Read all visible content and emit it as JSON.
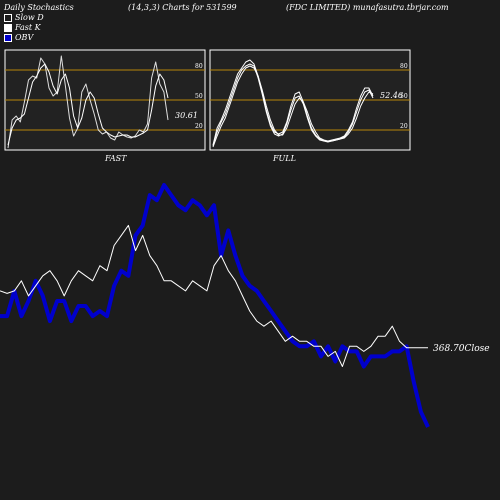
{
  "header": {
    "left": "Daily Stochastics",
    "center": "(14,3,3) Charts for 531599",
    "right": "(FDC LIMITED) munafasutra.tbrjar.com"
  },
  "legend": [
    {
      "label": "Slow  D",
      "color": "#1c1c1c"
    },
    {
      "label": "Fast K",
      "color": "#ffffff"
    },
    {
      "label": "OBV",
      "color": "#0000cc"
    }
  ],
  "colors": {
    "background": "#1c1c1c",
    "panel": "#222222",
    "level_lines": "#b8860b",
    "price": "#ffffff",
    "obv": "#0000cc"
  },
  "chart_data": [
    {
      "type": "line",
      "title": "FAST",
      "ylim": [
        0,
        100
      ],
      "levels": [
        20,
        50,
        80
      ],
      "level_labels": [
        "20",
        "50",
        "80"
      ],
      "last_value_label": "30.61",
      "series": [
        {
          "name": "Fast K",
          "values": [
            2,
            30,
            34,
            28,
            48,
            70,
            74,
            72,
            92,
            86,
            62,
            54,
            58,
            94,
            64,
            32,
            14,
            22,
            58,
            66,
            50,
            36,
            20,
            16,
            18,
            12,
            10,
            18,
            15,
            13,
            12,
            14,
            20,
            18,
            26,
            72,
            88,
            66,
            58,
            30
          ]
        },
        {
          "name": "Slow D",
          "values": [
            5,
            22,
            30,
            32,
            36,
            52,
            68,
            74,
            82,
            86,
            78,
            64,
            56,
            70,
            76,
            62,
            34,
            22,
            32,
            50,
            58,
            52,
            36,
            22,
            18,
            15,
            13,
            14,
            15,
            15,
            13,
            13,
            15,
            17,
            20,
            40,
            64,
            76,
            70,
            52
          ]
        }
      ]
    },
    {
      "type": "line",
      "title": "FULL",
      "ylim": [
        0,
        100
      ],
      "levels": [
        20,
        50,
        80
      ],
      "level_labels": [
        "20",
        "50",
        "80"
      ],
      "last_value_label": "52.46",
      "series": [
        {
          "name": "Slow D",
          "values": [
            4,
            18,
            28,
            36,
            48,
            60,
            72,
            80,
            84,
            86,
            84,
            72,
            56,
            38,
            24,
            16,
            14,
            16,
            26,
            40,
            52,
            54,
            46,
            32,
            20,
            14,
            10,
            9,
            8,
            9,
            10,
            11,
            13,
            18,
            26,
            38,
            50,
            58,
            60,
            52
          ]
        },
        {
          "name": "Fast K",
          "values": [
            5,
            22,
            30,
            40,
            52,
            64,
            76,
            82,
            88,
            90,
            86,
            74,
            58,
            40,
            26,
            18,
            16,
            18,
            28,
            44,
            56,
            58,
            48,
            34,
            22,
            15,
            11,
            9,
            9,
            10,
            11,
            12,
            14,
            20,
            28,
            42,
            54,
            62,
            62,
            54
          ]
        },
        {
          "name": "Full D",
          "values": [
            3,
            14,
            24,
            32,
            44,
            56,
            68,
            76,
            82,
            84,
            82,
            74,
            60,
            44,
            30,
            20,
            15,
            15,
            22,
            34,
            46,
            52,
            48,
            38,
            26,
            18,
            12,
            10,
            9,
            9,
            10,
            11,
            12,
            16,
            22,
            32,
            44,
            52,
            58,
            56
          ]
        }
      ]
    },
    {
      "type": "line",
      "title": "",
      "x_count": 61,
      "last_value_label": "368.70",
      "last_value_suffix": "Close",
      "series": [
        {
          "name": "OBV",
          "values": [
            375,
            375,
            380,
            375,
            378,
            382,
            379,
            374,
            378,
            378,
            374,
            377,
            377,
            375,
            376,
            375,
            381,
            384,
            383,
            391,
            393,
            399,
            398,
            401,
            399,
            397,
            396,
            398,
            397,
            395,
            397,
            387,
            392,
            387,
            383,
            381,
            380,
            378,
            376,
            374,
            372,
            370,
            369,
            369,
            370,
            367,
            369,
            366,
            369,
            368,
            368,
            365,
            367,
            367,
            367,
            368,
            368,
            369,
            362,
            356,
            353
          ]
        },
        {
          "name": "Close",
          "values": [
            380,
            379.5,
            380,
            382,
            379,
            381,
            383,
            384,
            382,
            379,
            382,
            384,
            383,
            382,
            385,
            384,
            389,
            391,
            393,
            388,
            391,
            387,
            385,
            382,
            382,
            381,
            380,
            382,
            381,
            380,
            385,
            387,
            384,
            382,
            379,
            376,
            374,
            373,
            374,
            372,
            370,
            371,
            370,
            370,
            369,
            369,
            367,
            368,
            365,
            369,
            369,
            368,
            369,
            371,
            371,
            373,
            370,
            368.7,
            368.7,
            368.7,
            368.7
          ]
        }
      ]
    }
  ]
}
